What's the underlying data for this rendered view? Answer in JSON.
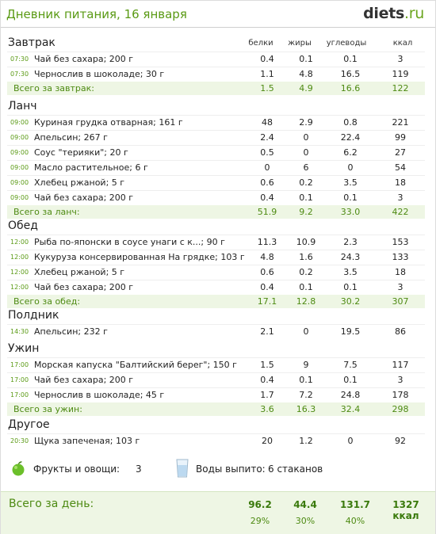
{
  "header": {
    "title": "Дневник питания, 16 января",
    "logo_main": "diets",
    "logo_tld": ".ru"
  },
  "columns": {
    "protein": "белки",
    "fat": "жиры",
    "carbs": "углеводы",
    "kcal": "ккал"
  },
  "meals": [
    {
      "name": "Завтрак",
      "items": [
        {
          "time": "07:30",
          "name": "Чай без сахара; 200 г",
          "protein": "0.4",
          "fat": "0.1",
          "carbs": "0.1",
          "kcal": "3"
        },
        {
          "time": "07:30",
          "name": "Чернослив в шоколаде; 30 г",
          "protein": "1.1",
          "fat": "4.8",
          "carbs": "16.5",
          "kcal": "119"
        }
      ],
      "total": {
        "label": "Всего за завтрак:",
        "protein": "1.5",
        "fat": "4.9",
        "carbs": "16.6",
        "kcal": "122"
      }
    },
    {
      "name": "Ланч",
      "items": [
        {
          "time": "09:00",
          "name": "Куриная грудка отварная; 161 г",
          "protein": "48",
          "fat": "2.9",
          "carbs": "0.8",
          "kcal": "221"
        },
        {
          "time": "09:00",
          "name": "Апельсин; 267 г",
          "protein": "2.4",
          "fat": "0",
          "carbs": "22.4",
          "kcal": "99"
        },
        {
          "time": "09:00",
          "name": "Соус \"терияки\"; 20 г",
          "protein": "0.5",
          "fat": "0",
          "carbs": "6.2",
          "kcal": "27"
        },
        {
          "time": "09:00",
          "name": "Масло растительное; 6 г",
          "protein": "0",
          "fat": "6",
          "carbs": "0",
          "kcal": "54"
        },
        {
          "time": "09:00",
          "name": "Хлебец ржаной; 5 г",
          "protein": "0.6",
          "fat": "0.2",
          "carbs": "3.5",
          "kcal": "18"
        },
        {
          "time": "09:00",
          "name": "Чай без сахара; 200 г",
          "protein": "0.4",
          "fat": "0.1",
          "carbs": "0.1",
          "kcal": "3"
        }
      ],
      "total": {
        "label": "Всего за ланч:",
        "protein": "51.9",
        "fat": "9.2",
        "carbs": "33.0",
        "kcal": "422"
      }
    },
    {
      "name": "Обед",
      "items": [
        {
          "time": "12:00",
          "name": "Рыба по-японски в соусе унаги с к...; 90 г",
          "protein": "11.3",
          "fat": "10.9",
          "carbs": "2.3",
          "kcal": "153"
        },
        {
          "time": "12:00",
          "name": "Кукуруза консервированная На грядке; 103 г",
          "protein": "4.8",
          "fat": "1.6",
          "carbs": "24.3",
          "kcal": "133"
        },
        {
          "time": "12:00",
          "name": "Хлебец ржаной; 5 г",
          "protein": "0.6",
          "fat": "0.2",
          "carbs": "3.5",
          "kcal": "18"
        },
        {
          "time": "12:00",
          "name": "Чай без сахара; 200 г",
          "protein": "0.4",
          "fat": "0.1",
          "carbs": "0.1",
          "kcal": "3"
        }
      ],
      "total": {
        "label": "Всего за обед:",
        "protein": "17.1",
        "fat": "12.8",
        "carbs": "30.2",
        "kcal": "307"
      }
    },
    {
      "name": "Полдник",
      "items": [
        {
          "time": "14:30",
          "name": "Апельсин; 232 г",
          "protein": "2.1",
          "fat": "0",
          "carbs": "19.5",
          "kcal": "86"
        }
      ]
    },
    {
      "name": "Ужин",
      "items": [
        {
          "time": "17:00",
          "name": "Морская капуска \"Балтийский берег\"; 150 г",
          "protein": "1.5",
          "fat": "9",
          "carbs": "7.5",
          "kcal": "117"
        },
        {
          "time": "17:00",
          "name": "Чай без сахара; 200 г",
          "protein": "0.4",
          "fat": "0.1",
          "carbs": "0.1",
          "kcal": "3"
        },
        {
          "time": "17:00",
          "name": "Чернослив в шоколаде; 45 г",
          "protein": "1.7",
          "fat": "7.2",
          "carbs": "24.8",
          "kcal": "178"
        }
      ],
      "total": {
        "label": "Всего за ужин:",
        "protein": "3.6",
        "fat": "16.3",
        "carbs": "32.4",
        "kcal": "298"
      }
    },
    {
      "name": "Другое",
      "items": [
        {
          "time": "20:30",
          "name": "Щука запеченая; 103 г",
          "protein": "20",
          "fat": "1.2",
          "carbs": "0",
          "kcal": "92"
        }
      ]
    }
  ],
  "extras": {
    "fruits_label": "Фрукты и овощи:",
    "fruits_value": "3",
    "water_label": "Воды выпито:",
    "water_value": "6 стаканов",
    "apple_icon": "apple-icon",
    "glass_icon": "water-glass-icon"
  },
  "day_total": {
    "label": "Всего за день:",
    "protein": "96.2",
    "fat": "44.4",
    "carbs": "131.7",
    "kcal": "1327 ккал",
    "protein_pct": "29%",
    "fat_pct": "30%",
    "carbs_pct": "40%"
  },
  "colors": {
    "accent": "#5a9a14",
    "total_bg": "#eef6e4"
  }
}
